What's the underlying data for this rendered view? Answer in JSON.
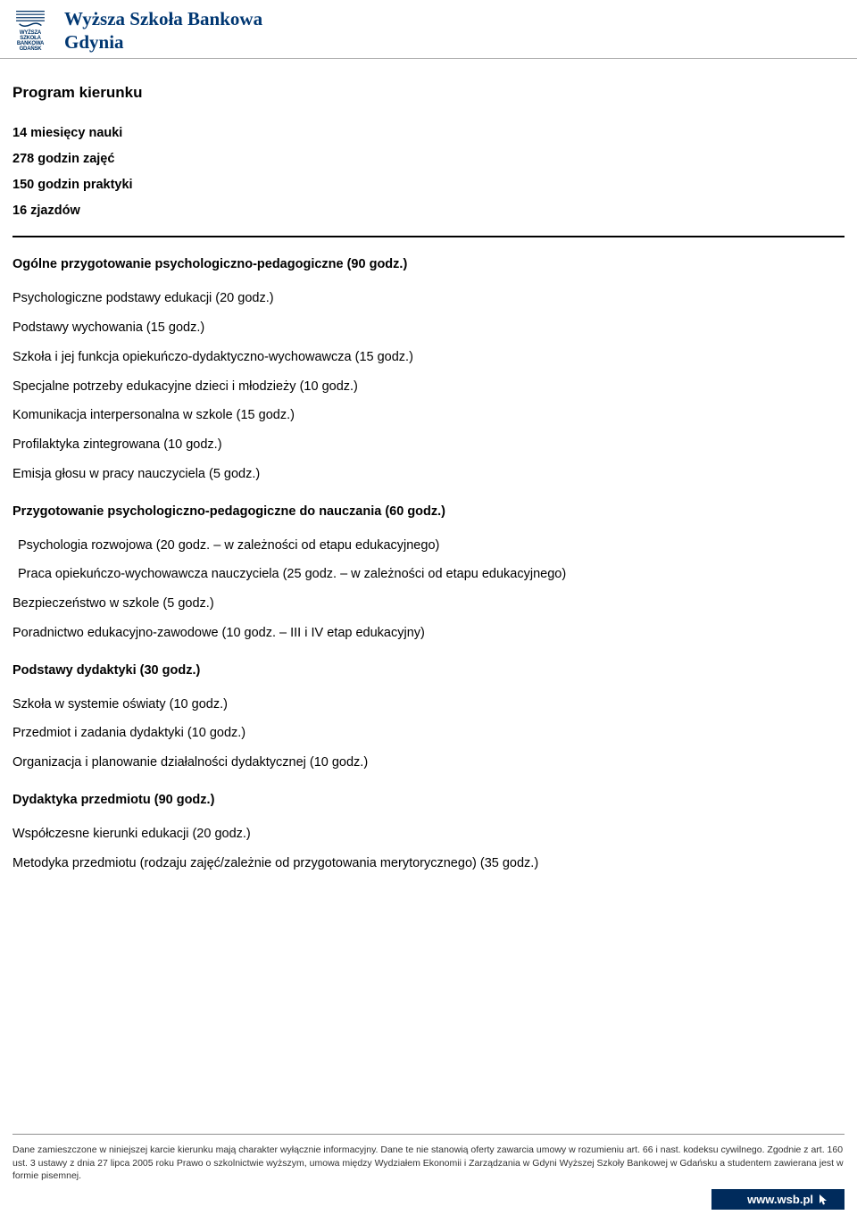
{
  "header": {
    "line1": "Wyższa Szkoła Bankowa",
    "line2": "Gdynia",
    "logo_caption1": "WYŻSZA SZKOŁA",
    "logo_caption2": "BANKOWA",
    "logo_caption3": "GDAŃSK",
    "title_color": "#003772",
    "logo_color": "#003366"
  },
  "page": {
    "title": "Program kierunku",
    "summary": [
      "14 miesięcy nauki",
      "278 godzin zajęć",
      "150 godzin praktyki",
      "16 zjazdów"
    ]
  },
  "sections": [
    {
      "title": "Ogólne przygotowanie psychologiczno-pedagogiczne (90 godz.)",
      "items": [
        {
          "text": "Psychologiczne podstawy edukacji (20 godz.)",
          "indent": false
        },
        {
          "text": "Podstawy wychowania (15 godz.)",
          "indent": false
        },
        {
          "text": "Szkoła i jej funkcja opiekuńczo-dydaktyczno-wychowawcza (15 godz.)",
          "indent": false
        },
        {
          "text": "Specjalne potrzeby edukacyjne dzieci i młodzieży (10 godz.)",
          "indent": false
        },
        {
          "text": "Komunikacja interpersonalna w szkole (15 godz.)",
          "indent": false
        },
        {
          "text": "Profilaktyka zintegrowana (10 godz.)",
          "indent": false
        },
        {
          "text": "Emisja głosu w pracy nauczyciela (5 godz.)",
          "indent": false
        }
      ]
    },
    {
      "title": "Przygotowanie psychologiczno-pedagogiczne do nauczania (60 godz.)",
      "items": [
        {
          "text": "Psychologia rozwojowa (20 godz. – w zależności od etapu edukacyjnego)",
          "indent": true
        },
        {
          "text": "Praca opiekuńczo-wychowawcza nauczyciela (25 godz. – w zależności od etapu edukacyjnego)",
          "indent": true
        },
        {
          "text": "Bezpieczeństwo w szkole (5 godz.)",
          "indent": false
        },
        {
          "text": "Poradnictwo edukacyjno-zawodowe (10 godz. – III i IV etap edukacyjny)",
          "indent": false
        }
      ]
    },
    {
      "title": "Podstawy dydaktyki (30 godz.)",
      "items": [
        {
          "text": "Szkoła w systemie oświaty (10 godz.)",
          "indent": false
        },
        {
          "text": "Przedmiot i zadania dydaktyki (10 godz.)",
          "indent": false
        },
        {
          "text": "Organizacja i planowanie działalności dydaktycznej (10 godz.)",
          "indent": false
        }
      ]
    },
    {
      "title": "Dydaktyka przedmiotu (90 godz.)",
      "items": [
        {
          "text": "Współczesne kierunki edukacji (20 godz.)",
          "indent": false
        },
        {
          "text": "Metodyka przedmiotu (rodzaju zajęć/zależnie od przygotowania merytorycznego) (35 godz.)",
          "indent": false
        }
      ]
    }
  ],
  "footer": {
    "disclaimer": "Dane zamieszczone w niniejszej karcie kierunku mają charakter wyłącznie informacyjny. Dane te nie stanowią oferty zawarcia umowy w rozumieniu art. 66 i nast. kodeksu cywilnego. Zgodnie z art. 160 ust. 3 ustawy z dnia 27 lipca 2005 roku Prawo o szkolnictwie wyższym, umowa między Wydziałem Ekonomii i Zarządzania w Gdyni Wyższej Szkoły Bankowej w Gdańsku a studentem zawierana jest w formie pisemnej.",
    "url": "www.wsb.pl",
    "bar_bg": "#002b5c",
    "bar_fg": "#ffffff"
  },
  "colors": {
    "body_text": "#000000",
    "hr_gray": "#b0b0b0",
    "footer_text": "#333333"
  }
}
